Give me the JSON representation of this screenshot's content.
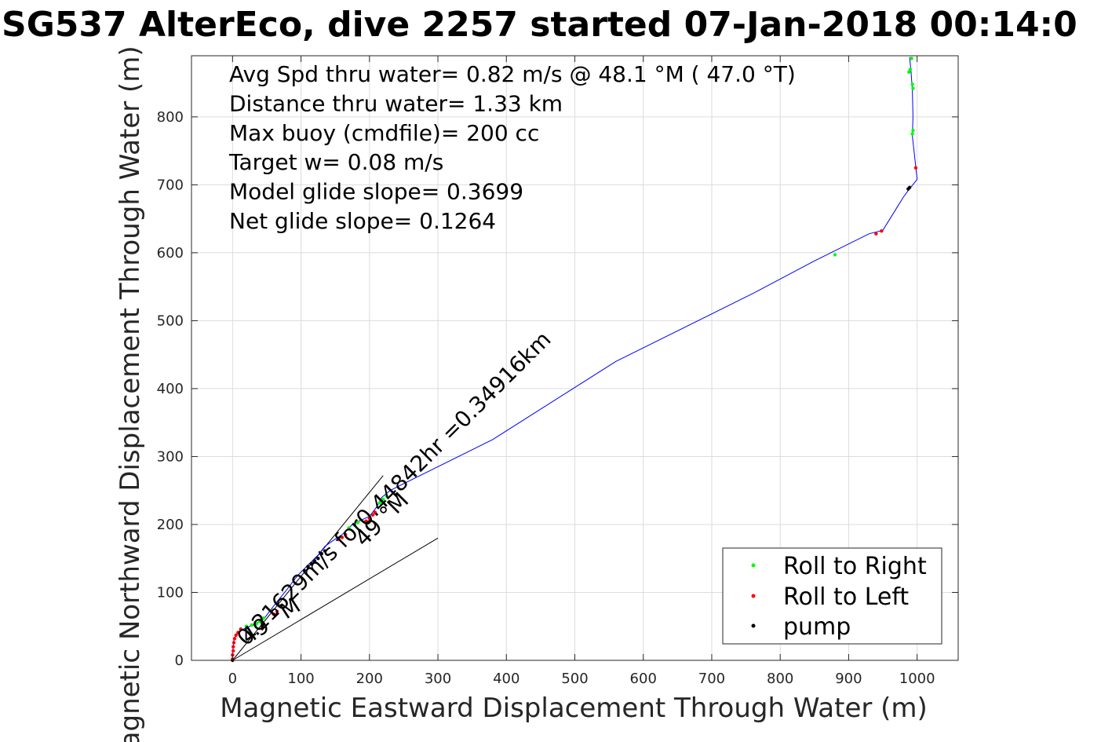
{
  "chart_data": {
    "type": "line",
    "title": "SG537 AlterEco, dive 2257 started 07-Jan-2018 00:14:0",
    "xlabel": "Magnetic Eastward Displacement Through Water (m)",
    "ylabel": "Magnetic Northward Displacement Through Water (m)",
    "xlim": [
      -60,
      1060
    ],
    "ylim": [
      0,
      890
    ],
    "xticks": [
      "0",
      "100",
      "200",
      "300",
      "400",
      "500",
      "600",
      "700",
      "800",
      "900",
      "1000"
    ],
    "yticks": [
      "0",
      "100",
      "200",
      "300",
      "400",
      "500",
      "600",
      "700",
      "800"
    ],
    "grid": true,
    "info_lines": [
      "Avg Spd thru water=  0.82 m/s @  48.1 °M ( 47.0 °T)",
      "Distance thru water=  1.33 km",
      "Max buoy (cmdfile)= 200 cc",
      "Target w= 0.08 m/s",
      "Model glide slope= 0.3699",
      "Net glide slope= 0.1264"
    ],
    "track": {
      "color": "#0000ff",
      "x": [
        0,
        0,
        1,
        2,
        5,
        10,
        20,
        30,
        45,
        60,
        80,
        95,
        110,
        125,
        135,
        145,
        160,
        175,
        185,
        200,
        210,
        218,
        230,
        380,
        560,
        760,
        850,
        930,
        950,
        980,
        988,
        1000,
        993,
        994,
        993,
        991,
        989
      ],
      "y": [
        0,
        10,
        20,
        30,
        38,
        43,
        48,
        52,
        60,
        80,
        105,
        125,
        140,
        155,
        168,
        175,
        185,
        200,
        205,
        212,
        225,
        240,
        250,
        325,
        440,
        540,
        588,
        628,
        633,
        682,
        693,
        708,
        772,
        800,
        840,
        868,
        888
      ]
    },
    "series": [
      {
        "name": "Roll to Right",
        "color": "#00ff00",
        "x": [
          20,
          28,
          35,
          40,
          45,
          170,
          178,
          183,
          215,
          220,
          225,
          880,
          988,
          990,
          993,
          994,
          994,
          993,
          992
        ],
        "y": [
          50,
          52,
          54,
          57,
          62,
          195,
          200,
          203,
          232,
          237,
          242,
          597,
          866,
          870,
          848,
          842,
          780,
          775,
          886
        ]
      },
      {
        "name": "Roll to Left",
        "color": "#ff0000",
        "x": [
          0,
          0,
          1,
          1,
          2,
          3,
          5,
          8,
          12,
          60,
          65,
          155,
          160,
          165,
          195,
          200,
          205,
          208,
          940,
          948,
          998
        ],
        "y": [
          2,
          8,
          14,
          20,
          26,
          32,
          37,
          41,
          46,
          68,
          72,
          178,
          181,
          185,
          205,
          209,
          214,
          218,
          628,
          632,
          725
        ]
      },
      {
        "name": "pump",
        "color": "#000000",
        "x": [
          0,
          105,
          110,
          115,
          120,
          125,
          130,
          135,
          987,
          989
        ],
        "y": [
          0,
          132,
          138,
          142,
          146,
          150,
          157,
          161,
          694,
          696
        ]
      }
    ],
    "heading_lines": [
      {
        "x": [
          0,
          220
        ],
        "y": [
          0,
          272
        ]
      },
      {
        "x": [
          0,
          300
        ],
        "y": [
          0,
          180
        ]
      }
    ],
    "annotations": [
      {
        "text": "0.21629m/s for0.44842hr =0.34916km",
        "x": 20,
        "y": 20,
        "rotation": -45,
        "size": 28
      },
      {
        "text": "49 °M",
        "x": 22,
        "y": 23,
        "rotation": -33,
        "size": 28
      },
      {
        "text": "49 °M",
        "x": 192,
        "y": 166,
        "rotation": -45,
        "size": 28
      }
    ],
    "legend": {
      "position": "bottom-right",
      "entries": [
        "Roll to Right",
        "Roll to Left",
        "pump"
      ]
    }
  }
}
